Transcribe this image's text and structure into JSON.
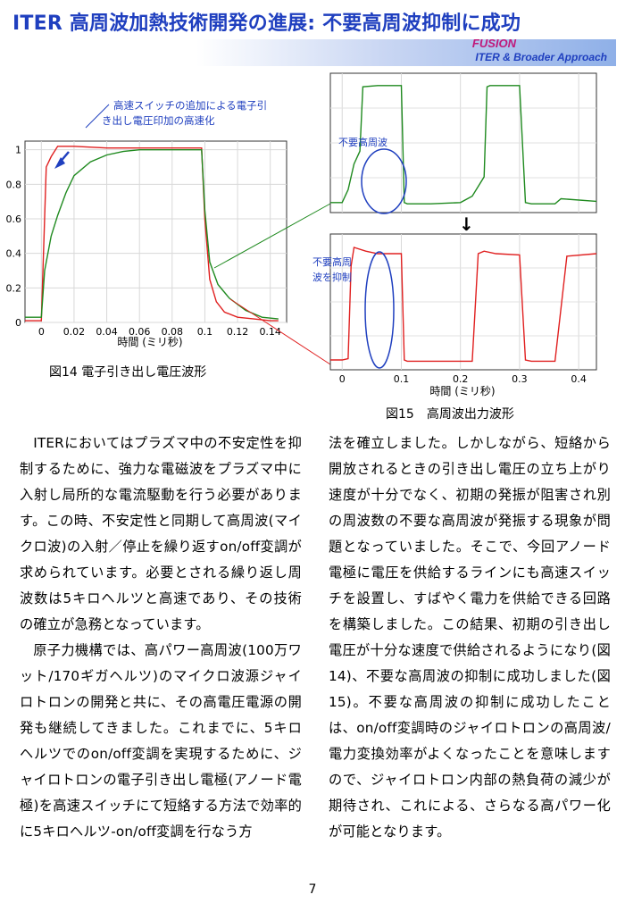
{
  "header": {
    "title": "ITER 高周波加熱技術開発の進展:  不要高周波抑制に成功",
    "brand_fusion": "FUSION",
    "brand_iter": "ITER & Broader Approach"
  },
  "colors": {
    "title": "#1f3fbf",
    "red": "#e02020",
    "green": "#1f8a1f",
    "annotation": "#1f3fbf",
    "fusion": "#c0187a"
  },
  "fig14": {
    "annotation_line1": "高速スイッチの追加による電子引",
    "annotation_line2": "き出し電圧印加の高速化",
    "xticks": [
      "0",
      "0.02",
      "0.04",
      "0.06",
      "0.08",
      "0.1",
      "0.12",
      "0.14"
    ],
    "yticks": [
      "0",
      "0.2",
      "0.4",
      "0.6",
      "0.8",
      "1"
    ],
    "xlabel": "時間 (ミリ秒)",
    "caption": "図14 電子引き出し電圧波形"
  },
  "fig15": {
    "label_top": "不要高周波",
    "label_bottom_line1": "不要高周",
    "label_bottom_line2": "波を抑制",
    "xticks": [
      "0",
      "0.1",
      "0.2",
      "0.3",
      "0.4"
    ],
    "xlabel": "時間 (ミリ秒)",
    "caption": "図15　高周波出力波形",
    "arrow": "↓"
  },
  "chart_data": [
    {
      "type": "line",
      "xlabel": "時間 (ミリ秒)",
      "ylabel": "",
      "xlim": [
        -0.01,
        0.15
      ],
      "ylim": [
        0,
        1.05
      ],
      "series": [
        {
          "color": "red",
          "x": [
            -0.01,
            0.0,
            0.003,
            0.006,
            0.01,
            0.02,
            0.04,
            0.06,
            0.08,
            0.098,
            0.1,
            0.103,
            0.107,
            0.112,
            0.12,
            0.13,
            0.14,
            0.145
          ],
          "values": [
            0.01,
            0.01,
            0.9,
            0.96,
            1.02,
            1.02,
            1.01,
            1.01,
            1.01,
            1.01,
            0.6,
            0.25,
            0.12,
            0.06,
            0.03,
            0.02,
            0.01,
            0.01
          ]
        },
        {
          "color": "green",
          "x": [
            -0.01,
            0.0,
            0.002,
            0.006,
            0.01,
            0.015,
            0.02,
            0.03,
            0.04,
            0.05,
            0.06,
            0.08,
            0.098,
            0.1,
            0.103,
            0.108,
            0.115,
            0.125,
            0.135,
            0.145
          ],
          "values": [
            0.03,
            0.03,
            0.3,
            0.5,
            0.62,
            0.75,
            0.85,
            0.93,
            0.97,
            0.99,
            1.0,
            1.0,
            1.0,
            0.65,
            0.35,
            0.22,
            0.14,
            0.07,
            0.03,
            0.02
          ]
        }
      ]
    },
    {
      "type": "line",
      "xlim": [
        -0.02,
        0.43
      ],
      "series": [
        {
          "color": "green",
          "x": [
            -0.02,
            0.0,
            0.01,
            0.02,
            0.03,
            0.035,
            0.06,
            0.08,
            0.1,
            0.105,
            0.11,
            0.15,
            0.2,
            0.22,
            0.24,
            0.245,
            0.25,
            0.28,
            0.3,
            0.31,
            0.32,
            0.36,
            0.37,
            0.43
          ],
          "values": [
            0.05,
            0.05,
            0.15,
            0.35,
            0.45,
            0.95,
            0.96,
            0.96,
            0.96,
            0.05,
            0.04,
            0.04,
            0.05,
            0.1,
            0.25,
            0.95,
            0.96,
            0.96,
            0.96,
            0.05,
            0.04,
            0.04,
            0.08,
            0.06
          ]
        }
      ]
    },
    {
      "type": "line",
      "xlim": [
        -0.02,
        0.43
      ],
      "series": [
        {
          "color": "red",
          "x": [
            -0.02,
            0.0,
            0.01,
            0.015,
            0.02,
            0.04,
            0.06,
            0.1,
            0.105,
            0.11,
            0.15,
            0.2,
            0.22,
            0.23,
            0.24,
            0.26,
            0.3,
            0.31,
            0.32,
            0.36,
            0.38,
            0.43
          ],
          "values": [
            0.05,
            0.05,
            0.06,
            0.8,
            0.95,
            0.92,
            0.9,
            0.9,
            0.05,
            0.04,
            0.04,
            0.04,
            0.04,
            0.9,
            0.92,
            0.9,
            0.89,
            0.05,
            0.04,
            0.04,
            0.88,
            0.9
          ]
        }
      ]
    }
  ],
  "body": {
    "left": [
      {
        "text": "ITERにおいてはプラズマ中の不安定性を抑制するために、強力な電磁波をプラズマ中に入射し局所的な電流駆動を行う必要があります。この時、不安定性と同期して高周波(マイクロ波)の入射／停止を繰り返すon/off変調が求められています。必要とされる繰り返し周波数は5キロヘルツと高速であり、その技術の確立が急務となっています。"
      },
      {
        "text": "原子力機構では、高パワー高周波(100万ワット/170ギガヘルツ)のマイクロ波源ジャイロトロンの開発と共に、その高電圧電源の開発も継続してきました。これまでに、5キロヘルツでのon/off変調を実現するために、ジャイロトロンの電子引き出し電極(アノード電極)を高速スイッチにて短絡する方法で効率的に5キロヘルツ-on/off変調を行なう方"
      }
    ],
    "right": "法を確立しました。しかしながら、短絡から開放されるときの引き出し電圧の立ち上がり速度が十分でなく、初期の発振が阻害され別の周波数の不要な高周波が発振する現象が問題となっていました。そこで、今回アノード電極に電圧を供給するラインにも高速スイッチを設置し、すばやく電力を供給できる回路を構築しました。この結果、初期の引き出し電圧が十分な速度で供給されるようになり(図14)、不要な高周波の抑制に成功しました(図15)。不要な高周波の抑制に成功したことは、on/off変調時のジャイロトロンの高周波/電力変換効率がよくなったことを意味しますので、ジャイロトロン内部の熱負荷の減少が期待され、これによる、さらなる高パワー化が可能となります。"
  },
  "page_number": "7"
}
